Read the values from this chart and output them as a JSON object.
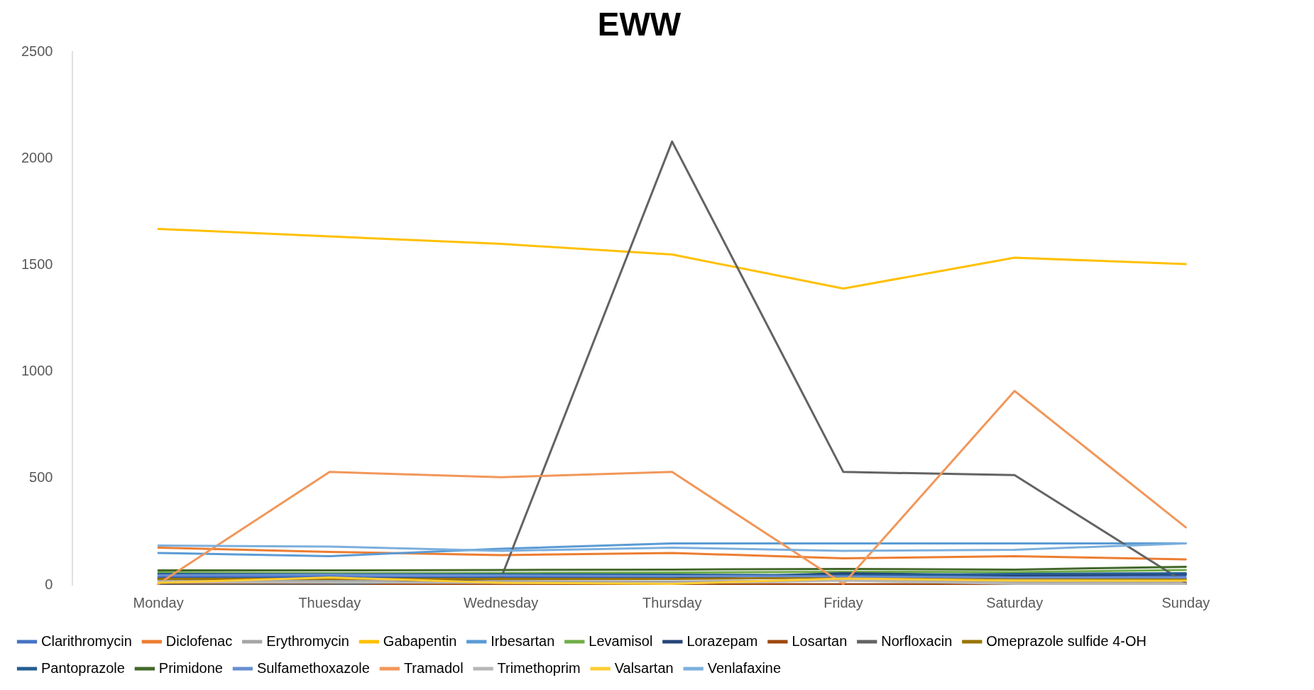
{
  "chart_data": {
    "type": "line",
    "title": "EWW",
    "categories": [
      "Monday",
      "Thuesday",
      "Wednesday",
      "Thursday",
      "Friday",
      "Saturday",
      "Sunday"
    ],
    "ylim": [
      0,
      2500
    ],
    "yticks": [
      0,
      500,
      1000,
      1500,
      2000,
      2500
    ],
    "grid": false,
    "legend": "bottom",
    "marker": "none",
    "series": [
      {
        "name": "Clarithromycin",
        "color": "#4472c4",
        "values": [
          38,
          38,
          36,
          35,
          48,
          42,
          45
        ]
      },
      {
        "name": "Diclofenac",
        "color": "#ed7d31",
        "values": [
          175,
          155,
          140,
          150,
          125,
          135,
          120
        ]
      },
      {
        "name": "Erythromycin",
        "color": "#a5a5a5",
        "values": [
          22,
          20,
          18,
          16,
          22,
          15,
          12
        ]
      },
      {
        "name": "Gabapentin",
        "color": "#ffc000",
        "values": [
          1670,
          1635,
          1600,
          1550,
          1390,
          1535,
          1505
        ]
      },
      {
        "name": "Irbesartan",
        "color": "#5b9bd5",
        "values": [
          150,
          135,
          170,
          195,
          195,
          195,
          195
        ]
      },
      {
        "name": "Levamisol",
        "color": "#70ad47",
        "values": [
          58,
          55,
          56,
          58,
          62,
          60,
          70
        ]
      },
      {
        "name": "Lorazepam",
        "color": "#264478",
        "values": [
          30,
          30,
          30,
          30,
          55,
          45,
          50
        ]
      },
      {
        "name": "Losartan",
        "color": "#9e480e",
        "values": [
          3,
          3,
          3,
          3,
          3,
          3,
          3
        ]
      },
      {
        "name": "Norfloxacin",
        "color": "#636363",
        "values": [
          0,
          0,
          30,
          2080,
          530,
          515,
          10
        ]
      },
      {
        "name": "Omeprazole sulfide 4-OH",
        "color": "#997300",
        "values": [
          28,
          28,
          28,
          28,
          35,
          30,
          28
        ]
      },
      {
        "name": "Pantoprazole",
        "color": "#255e91",
        "values": [
          52,
          50,
          50,
          48,
          45,
          52,
          55
        ]
      },
      {
        "name": "Primidone",
        "color": "#43682b",
        "values": [
          68,
          68,
          70,
          72,
          75,
          72,
          85
        ]
      },
      {
        "name": "Sulfamethoxazole",
        "color": "#698ed0",
        "values": [
          45,
          48,
          45,
          42,
          40,
          35,
          35
        ]
      },
      {
        "name": "Tramadol",
        "color": "#f1975a",
        "values": [
          5,
          530,
          505,
          530,
          5,
          910,
          270
        ]
      },
      {
        "name": "Trimethoprim",
        "color": "#b7b7b7",
        "values": [
          15,
          12,
          10,
          8,
          20,
          5,
          5
        ]
      },
      {
        "name": "Valsartan",
        "color": "#ffcd33",
        "values": [
          10,
          35,
          10,
          5,
          30,
          20,
          20
        ]
      },
      {
        "name": "Venlafaxine",
        "color": "#7cafdd",
        "values": [
          185,
          180,
          160,
          175,
          160,
          165,
          195
        ]
      }
    ]
  }
}
